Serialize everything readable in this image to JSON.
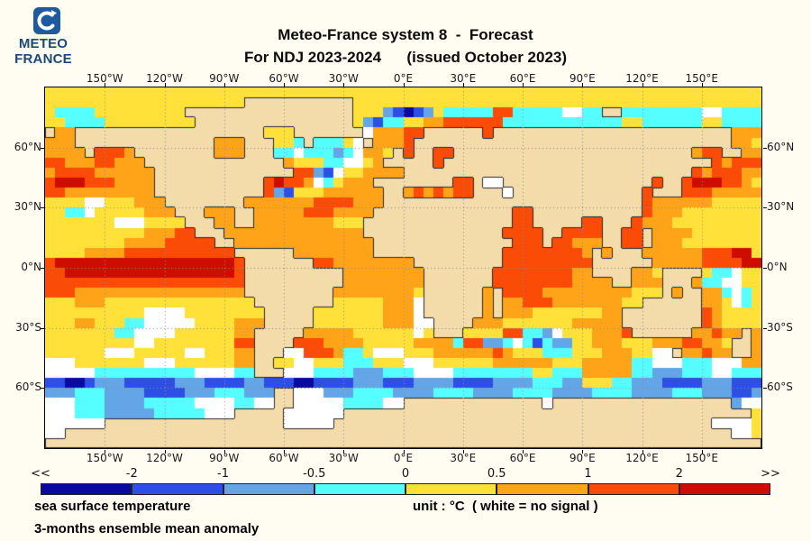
{
  "logo": {
    "meteo": "METEO",
    "france": "FRANCE",
    "brand_blue": "#1d5b9e",
    "text_blue": "#1c4879"
  },
  "title": {
    "line1": "Meteo-France system 8  -  Forecast",
    "line2": "For NDJ 2023-2024      (issued October 2023)"
  },
  "axes": {
    "lon_ticks": [
      {
        "label": "150°W",
        "lon": -150
      },
      {
        "label": "120°W",
        "lon": -120
      },
      {
        "label": "90°W",
        "lon": -90
      },
      {
        "label": "60°W",
        "lon": -60
      },
      {
        "label": "30°W",
        "lon": -30
      },
      {
        "label": "0°E",
        "lon": 0
      },
      {
        "label": "30°E",
        "lon": 30
      },
      {
        "label": "60°E",
        "lon": 60
      },
      {
        "label": "90°E",
        "lon": 90
      },
      {
        "label": "120°E",
        "lon": 120
      },
      {
        "label": "150°E",
        "lon": 150
      }
    ],
    "lat_ticks": [
      {
        "label": "60°N",
        "lat": 60
      },
      {
        "label": "30°N",
        "lat": 30
      },
      {
        "label": "0°N",
        "lat": 0
      },
      {
        "label": "30°S",
        "lat": -30
      },
      {
        "label": "60°S",
        "lat": -60
      }
    ]
  },
  "colorbar": {
    "tick_labels": [
      "<<",
      "-2",
      "-1",
      "-0.5",
      "0",
      "0.5",
      "1",
      "2",
      ">>"
    ],
    "segment_colors": [
      "#0a0a9e",
      "#2d4fe3",
      "#63a5e6",
      "#55ffff",
      "#ffe13a",
      "#ffa318",
      "#fa4b07",
      "#cc0d00"
    ]
  },
  "footer": {
    "left_line1": "sea surface temperature",
    "left_line2": "3-months ensemble mean anomaly",
    "unit": "unit : °C  ( white = no signal )"
  },
  "chart_data": {
    "type": "heatmap",
    "title": "Meteo-France system 8 - Forecast, SST 3-months ensemble mean anomaly, NDJ 2023-2024, issued October 2023",
    "projection": "equirectangular",
    "lon_range": [
      -180,
      180
    ],
    "lat_range": [
      -90,
      90
    ],
    "grid_cols": 72,
    "unit": "°C",
    "legend_bins": [
      {
        "code": "N",
        "label": "< -2",
        "color": "#0a0a9e"
      },
      {
        "code": "M",
        "label": "-2 to -1",
        "color": "#2d4fe3"
      },
      {
        "code": "B",
        "label": "-1 to -0.5",
        "color": "#63a5e6"
      },
      {
        "code": "C",
        "label": "-0.5 to 0",
        "color": "#55ffff"
      },
      {
        "code": "Y",
        "label": "0 to 0.5",
        "color": "#ffe13a"
      },
      {
        "code": "O",
        "label": "0.5 to 1",
        "color": "#ffa318"
      },
      {
        "code": "R",
        "label": "1 to 2",
        "color": "#fa4b07"
      },
      {
        "code": "D",
        "label": "> 2",
        "color": "#cc0d00"
      },
      {
        "code": "W",
        "label": "white = no signal",
        "color": "#ffffff"
      },
      {
        "code": "L",
        "label": "land",
        "color": "#f3dbaa"
      }
    ],
    "grid": [
      "YYYYYYYYYYYYYYYYYYYYYYYYYYYYYYYYYYYYYYYYYYYYYYYYYYYYYYYYYYYYYYYYYYYYYYYY",
      "YYYYYYYYYYYYYYYYYYYYLLLLLLLLLLLYYYYYYYYYYYYYYYYYYYYYYYYYYYYYYYYYYYYYYYY",
      "YCCCCYYYYYYYYYLLLLLLLLLLLLLLLLLYYYBMNMBYCCCCCRRCCCCCWWCCLLCCCCCCCCWWCCCC",
      "YYCCCCYYYYYYYYYLLLLLLLLLLLLLLLLYBMCCYYOORRRRRRCCCCCCCCCCCCYYCCCCCCYYCCCC",
      "LOOLLLLLLLLLLLLLLLLLLLYYYLLLLLLLWOOORRLLLLLLRLLLLLLLLLLLLLLLLLLLLLLLLOOO",
      "OOOLLLLLLLLLLLLLLOOOLLLYYCLCCCYWLOOORLLLLLLLLLLLLLLLLLLLLLLLLLLLLLLLLOOY",
      "OOOOLRRROLLLLLLLLOOOLLLCCWCCCBCWOOYLRLLRRLLLLLLLLLLLLLLLLLLLLLLLLORRLLOOR",
      "RROOORROOOLLLLLLLLLLLLLLOYYYCCWWYOLLLLLRLLLLLLLLLLLLLLLLLLLLLLLLLLLRORRROO",
      "ORRRROOOOOOLLLLLLLLLLLLLLRRBMWYYOOOOLLLLLLLLLLLLLLLLLLLLLLLLLLLLLRORRROO",
      "RDDDRRROOOOLLLLLLLLLLLRDRROWCYOOOLLLLLLLLRRLWWLLLLLLLLLLLLLLLRLLRDDDRRO",
      "RROOOOOOOOOLLLLLLLLLLLRBMYYYOOOOOOLLORORORRLLLWLLLLLLLLLLLLLRLLLRRROOOOO",
      "YYYYWWYYYOOOLLLLLLLLOOOOOOORRRROOOLLLLLLLLLLLLLLLLLLLLLLLLLLROOOOOOYYYYY",
      "YYCCWYYYYYOOOLLLOOOLLOOOOORRROOOOLLLLLLLLLLLLLLRRLLLLLLLLLLLROOOYYYYYYYY",
      "YYYYYYYWWWYYYYLLLOOLLOOOOOOOOYYYLLLLLLLLLLLLLLLRRLLLLLRRLLLROOOYYYYYYYYY",
      "YYYYYYYYYYOOORRLLLOOOOOOOOOOOOOOLLLLLLLLLLLLLLRRRRLLRRRRLLRRLOOOOYYYYYYY",
      "YYYYYYYYOOOORRRRRLLOOOOOOOOOOOOOOLLLLLLLLLLLLLLRRRLRROOOLLRRLOOOYYYYYYYY",
      "YYYYOOOORRRRRRRRRRRLLLLLLOOOOOOOOLLLLLLLLLLLLLRRRRRRRROLOLLLOOOOOORRRDD",
      "RDDDDDDDDDDDDDDDDDDRLLLLLLLRROOOOOOOOLLLLLLLLLRRRRRRRRRLLLLLLOOOOORRRRDD",
      "RRDDDDDDDDDDDDDDDDDRLLLLLLLLLLOOOOOOOOLLLLLLLRRRRRRRROOLLLLOOYLLLLYCCWYY",
      "RRRRRRRRRRRRRRRRRRRRLLLLLLLLLLOOOOOOOOLLLLLLLRRRRRRRROOOOLLOOOLLLOCCWWYY",
      "RRROOOOOOOOOOOOOOOOOLLLLLLLLLOOOOOOOOYLLLLLLOLRRRROOOOOOOOOYYYLOLLOOCWCY",
      "YYYOOOYYYYYYYYYYYYYYYLLLLLLLLYYYYYOOOWLLLLLLOLOORRROOOOOOOYYLLLLLLOOYWCY",
      "YYYYYYYYYYWWWWYYYYYYYYLLLLLYYYYYYYOOOWLLLLLLOLOOOYYYYYYYOOLLLLLLLLROYYY",
      "YYYOOYYYCCWWWWWYYYYOOOLLLLLYYYYYYYOOOWWLLLLOOOYYYYYYYOOOOOLLLLLLLLROYYY",
      "YYYYYYYCCWWWWYYYYYYOOLLLLLOOOOOYYYYYYWYLLLYYYYRRCCBWYYYOOORLLLLLLOOROOLO",
      "YYYYYYYYYWWYYYYYYYYRRLLLLRRROOOOYYYYYOOOOCRRBBCWCMCBBYYOOOYYYOOORROOYLLO",
      "YYYYYYWWWYYYYYWWYYYOOLLLWWRRROCCYWWWYYYOOOOOOROYYYCCCYYYOOOYYWWLOOROOLLO",
      "WWWYYYYYYYWWWYYYYYYOOLLYYWWYYYCCCYYYWWWYYYYYYOOOOOOYYYOOOOOCCWWWCCCWWWOO",
      "WWWWWCCCCCCCCCCWWWWCCLLLWWWCCCCBBBCCCWWWWCCCCCCCCYYCCCOOOOOCCBBBCCCWWCCC",
      "MMNNMBBBMMMMMBBBMMMMBBMMMNNMMMMBBBMMMBBBBMMMMBBBBCCCBBYYYCCBBBMMMMBBBMMM",
      "BBBCCCBBBBMMMMBBBCCCBBBLLWWWBBBCCCCBBBBCCCCBBBBCCCCBBBBCCCCBBBBCCCBBBMMB",
      "WWWCCCBBBBCCCCCWWWWCCWWLLWWWWWCCCCWWLLLLLLLLLLLLLLWLLLLLLLLLLLLLLLLLLBWW",
      "WWWCCCBBBBBCCCCCWWWLLLLLWWWWWWLLLLLLLLLLLLLLLLLLLLLLLLLLLLLLLLLLLLLLLLL",
      "WWWWWWLLLLLLLLLLLLLLLLLLWWWWWLLLLLLLLLLLLLLLLLLLLLLLLLLLLLLLLLLLLLLWWWW",
      "WWLLLLLLLLLLLLLLLLLLLLLLLLLLLLLLLLLLLLLLLLLLLLLLLLLLLLLLLLLLLLLLLLLLLWW",
      "LLLLLLLLLLLLLLLLLLLLLLLLLLLLLLLLLLLLLLLLLLLLLLLLLLLLLLLLLLLLLLLLLLLLLLLL"
    ]
  }
}
